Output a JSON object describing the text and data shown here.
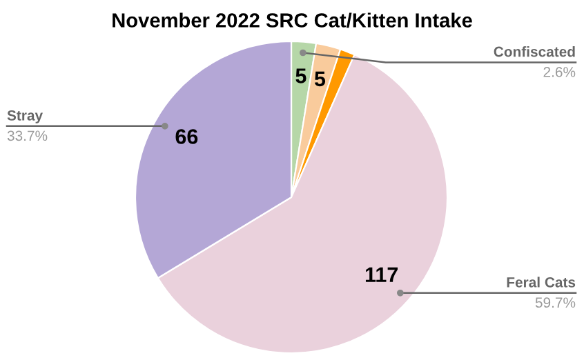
{
  "chart_data": {
    "type": "pie",
    "title": "November 2022 SRC Cat/Kitten Intake",
    "categories": [
      "Confiscated",
      null,
      null,
      "Feral Cats",
      "Stray"
    ],
    "values": [
      5,
      5,
      3,
      117,
      66
    ],
    "colors": [
      "#b6d7a8",
      "#f9cb9c",
      "#ff9900",
      "#ead1dc",
      "#b4a7d6"
    ],
    "value_labels": [
      "5",
      "5",
      null,
      "117",
      "66"
    ],
    "annotations": [
      {
        "text": "2.6%",
        "x": "Confiscated"
      },
      {
        "text": "59.7%",
        "x": "Feral Cats"
      },
      {
        "text": "33.7%",
        "x": "Stray"
      }
    ]
  }
}
